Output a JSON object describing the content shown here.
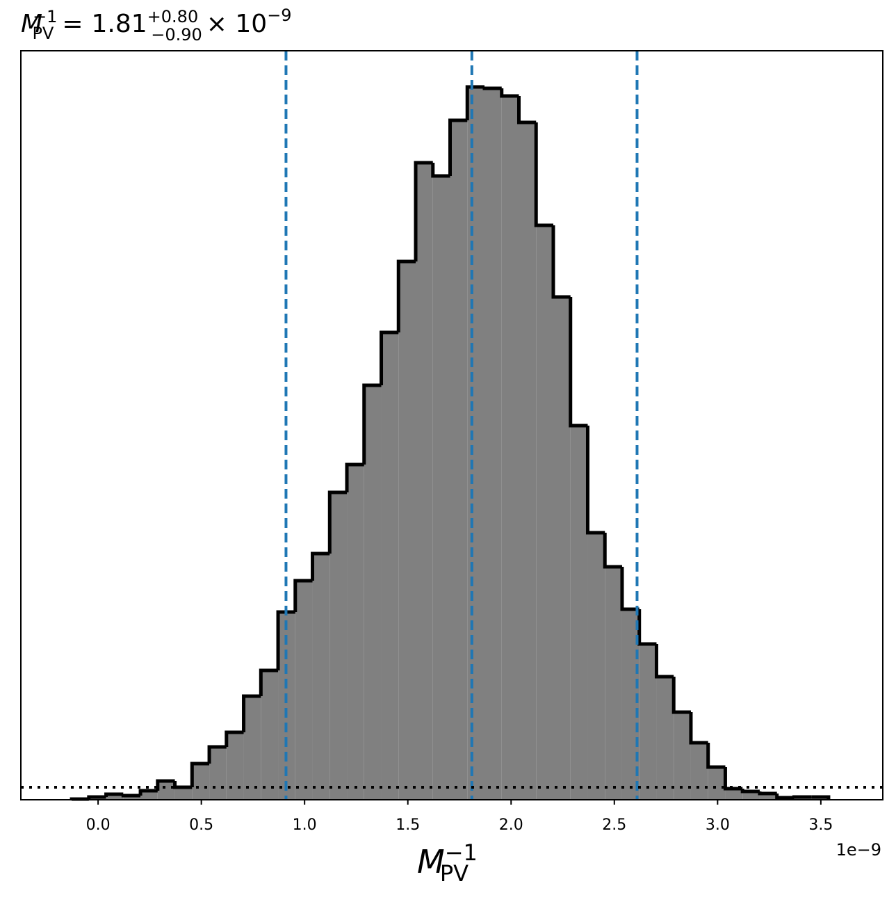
{
  "chart_data": {
    "type": "histogram",
    "title": {
      "symbol": "M",
      "symbol_sub": "PV",
      "symbol_sup": "−1",
      "equals": "=",
      "value": "1.81",
      "plus": "+0.80",
      "minus": "−0.90",
      "times": "× 10",
      "exponent": "−9"
    },
    "xlabel": {
      "symbol": "M",
      "sub": "PV",
      "sup": "−1"
    },
    "x_offset_label": "1e−9",
    "bins": [
      -0.128,
      -0.0447,
      0.0386,
      0.1219,
      0.2052,
      0.2885,
      0.3718,
      0.4551,
      0.5384,
      0.6217,
      0.705,
      0.7883,
      0.8716,
      0.9549,
      1.0382,
      1.1215,
      1.2048,
      1.2881,
      1.3714,
      1.4547,
      1.538,
      1.6213,
      1.7046,
      1.7879,
      1.8712,
      1.9545,
      2.0378,
      2.1211,
      2.2044,
      2.2877,
      2.371,
      2.4543,
      2.5376,
      2.6209,
      2.7042,
      2.7875,
      2.8708,
      2.9541,
      3.0374,
      3.1207,
      3.204,
      3.2873,
      3.3706,
      3.4539,
      3.5372
    ],
    "values": [
      1,
      4,
      8,
      6,
      13,
      27,
      18,
      52,
      76,
      97,
      149,
      186,
      270,
      315,
      354,
      442,
      482,
      596,
      672,
      774,
      916,
      897,
      977,
      1025,
      1023,
      1012,
      974,
      826,
      723,
      538,
      384,
      335,
      274,
      224,
      177,
      126,
      82,
      47,
      16,
      12,
      9,
      3,
      4,
      4
    ],
    "color": "#808080",
    "edge_color": "#000000",
    "quantile_lines": [
      0.91,
      1.81,
      2.61
    ],
    "quantile_color": "#1f77b4",
    "reference_level": 18,
    "xlim": [
      -0.374,
      3.8
    ],
    "ylim": [
      0,
      1077
    ],
    "xticks": [
      {
        "value": 0,
        "label": "0.0"
      },
      0.5,
      {
        "value": 1,
        "label": "1.0"
      },
      1.5,
      {
        "value": 2,
        "label": "2.0"
      },
      2.5,
      {
        "value": 3,
        "label": "3.0"
      },
      3.5
    ]
  }
}
